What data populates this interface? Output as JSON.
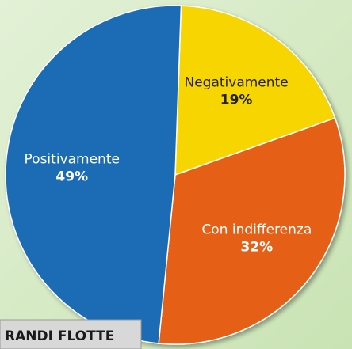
{
  "chart_data": {
    "type": "pie",
    "categories": [
      "Negativamente",
      "Con indifferenza",
      "Positivamente"
    ],
    "values": [
      19,
      32,
      49
    ],
    "value_labels": [
      "19%",
      "32%",
      "49%"
    ],
    "colors": [
      "#f7d500",
      "#e65f12",
      "#1f6cb5"
    ],
    "caption": "RANDI FLOTTE"
  }
}
